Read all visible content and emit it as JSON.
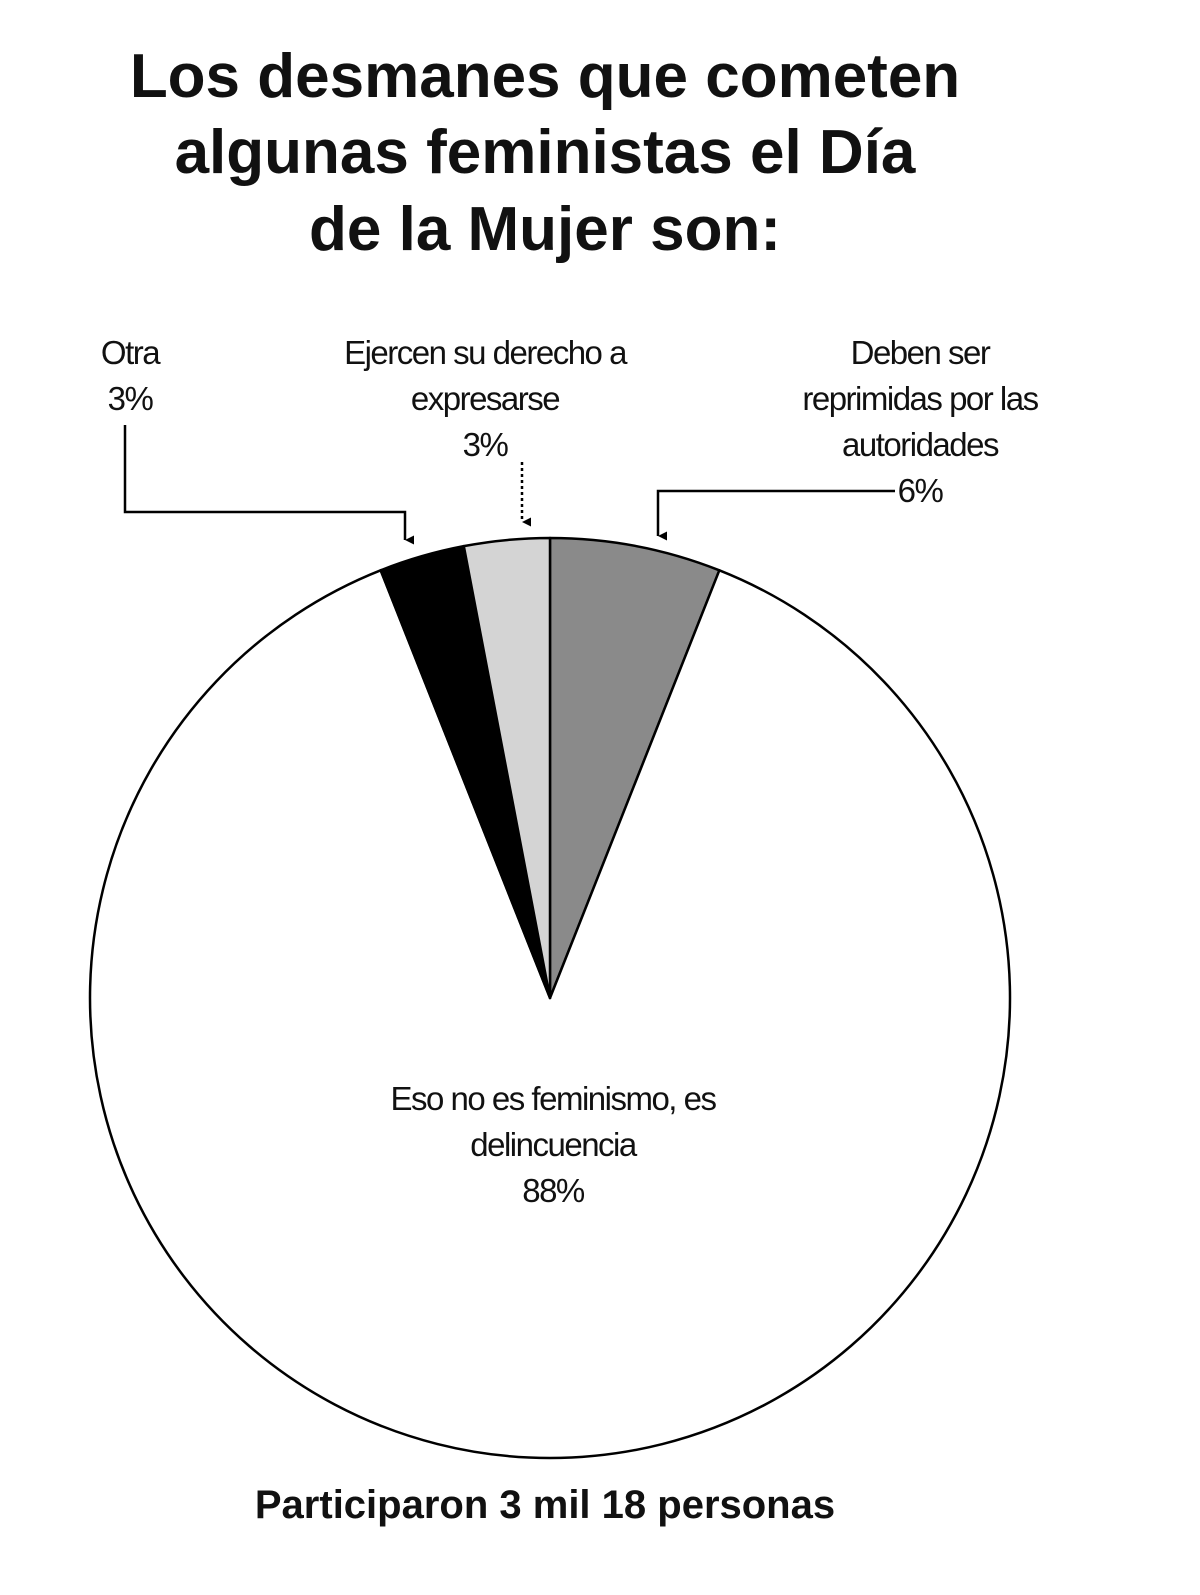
{
  "chart_data": {
    "type": "pie",
    "title": [
      "Los desmanes que cometen",
      "algunas feministas el Día",
      "de la Mujer son:"
    ],
    "categories": [
      "Deben ser reprimidas por las autoridades",
      "Eso no es feminismo, es delincuencia",
      "Otra",
      "Ejercen su derecho a expresarse"
    ],
    "values": [
      6,
      88,
      3,
      3
    ],
    "value_labels": [
      "6%",
      "88%",
      "3%",
      "3%"
    ],
    "colors": [
      "#8a8a8a",
      "#ffffff",
      "#000000",
      "#d4d4d4"
    ],
    "footnote": "Participaron 3 mil 18 personas"
  }
}
